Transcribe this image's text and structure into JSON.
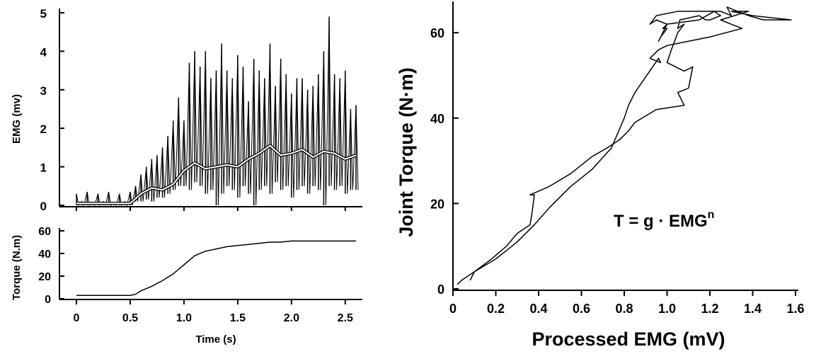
{
  "chart_data": [
    {
      "id": "emg",
      "type": "line",
      "xlabel": "",
      "ylabel": "EMG (mv)",
      "xlim": [
        0,
        2.6
      ],
      "ylim": [
        0,
        5
      ],
      "yticks": [
        "0",
        "1",
        "2",
        "3",
        "4",
        "5"
      ],
      "grid": false,
      "series": [
        {
          "role": "raw",
          "color": "#000000",
          "x": [
            0.0,
            0.05,
            0.1,
            0.15,
            0.2,
            0.25,
            0.3,
            0.35,
            0.4,
            0.45,
            0.5,
            0.55,
            0.6,
            0.65,
            0.7,
            0.75,
            0.8,
            0.85,
            0.9,
            0.95,
            1.0,
            1.05,
            1.1,
            1.15,
            1.2,
            1.25,
            1.3,
            1.35,
            1.4,
            1.45,
            1.5,
            1.55,
            1.6,
            1.65,
            1.7,
            1.75,
            1.8,
            1.85,
            1.9,
            1.95,
            2.0,
            2.05,
            2.1,
            2.15,
            2.2,
            2.25,
            2.3,
            2.35,
            2.4,
            2.45,
            2.5,
            2.55,
            2.6
          ],
          "y": [
            0.3,
            0.1,
            0.35,
            0.05,
            0.3,
            0.1,
            0.35,
            0.05,
            0.3,
            0.1,
            0.35,
            0.5,
            0.8,
            1.0,
            1.2,
            1.3,
            1.5,
            1.8,
            2.2,
            2.8,
            2.2,
            3.7,
            4.0,
            3.6,
            4.0,
            3.3,
            3.5,
            4.2,
            3.5,
            3.3,
            3.9,
            3.6,
            2.7,
            3.8,
            3.5,
            3.3,
            4.2,
            3.1,
            3.8,
            3.4,
            2.9,
            3.3,
            3.3,
            3.0,
            3.1,
            3.4,
            4.0,
            4.9,
            3.4,
            3.3,
            3.5,
            2.5,
            2.6
          ],
          "y_low": [
            0.0,
            0.0,
            0.0,
            0.0,
            0.0,
            0.0,
            0.0,
            0.0,
            0.0,
            0.0,
            0.0,
            0.1,
            0.1,
            0.15,
            0.1,
            0.2,
            0.2,
            0.3,
            0.4,
            0.5,
            0.5,
            0.4,
            0.6,
            0.5,
            0.3,
            0.4,
            0.0,
            0.3,
            0.5,
            0.4,
            0.2,
            0.5,
            0.3,
            0.0,
            0.4,
            0.5,
            0.3,
            0.6,
            0.4,
            0.5,
            0.2,
            0.4,
            0.5,
            0.3,
            0.5,
            0.4,
            0.0,
            0.5,
            0.4,
            0.5,
            0.3,
            0.4,
            0.4
          ]
        },
        {
          "role": "processed",
          "color": "#ffffff",
          "x": [
            0.0,
            0.5,
            0.6,
            0.7,
            0.8,
            0.9,
            1.0,
            1.1,
            1.2,
            1.3,
            1.4,
            1.5,
            1.6,
            1.7,
            1.8,
            1.9,
            2.0,
            2.1,
            2.2,
            2.3,
            2.4,
            2.5,
            2.6
          ],
          "y": [
            0.05,
            0.05,
            0.3,
            0.45,
            0.4,
            0.55,
            0.9,
            1.1,
            0.95,
            1.0,
            1.05,
            1.0,
            1.2,
            1.35,
            1.55,
            1.3,
            1.35,
            1.45,
            1.25,
            1.4,
            1.35,
            1.2,
            1.3
          ]
        }
      ]
    },
    {
      "id": "torque",
      "type": "line",
      "xlabel": "Time (s)",
      "ylabel": "Torque (N.m)",
      "xlim": [
        0,
        2.6
      ],
      "ylim": [
        0,
        60
      ],
      "xticks": [
        "0",
        "0.5",
        "1.0",
        "1.5",
        "2.0",
        "2.5"
      ],
      "yticks": [
        "0",
        "20",
        "40",
        "60"
      ],
      "grid": false,
      "series": [
        {
          "color": "#000000",
          "x": [
            0.0,
            0.5,
            0.55,
            0.6,
            0.7,
            0.8,
            0.9,
            1.0,
            1.1,
            1.2,
            1.3,
            1.4,
            1.5,
            1.6,
            1.7,
            1.8,
            1.9,
            2.0,
            2.1,
            2.2,
            2.3,
            2.4,
            2.5,
            2.6
          ],
          "y": [
            3,
            3,
            4,
            7,
            11,
            16,
            22,
            30,
            38,
            42,
            44,
            46,
            47,
            48,
            49,
            50,
            50,
            51,
            51,
            51,
            51,
            51,
            51,
            51
          ]
        }
      ]
    },
    {
      "id": "relation",
      "type": "line",
      "xlabel": "Processed EMG (mV)",
      "ylabel": "Joint Torque (N·m)",
      "xlim": [
        0,
        1.6
      ],
      "ylim": [
        0,
        67
      ],
      "xticks": [
        "0",
        "0.2",
        "0.4",
        "0.6",
        "0.8",
        "1.0",
        "1.2",
        "1.4",
        "1.6"
      ],
      "yticks": [
        "0",
        "20",
        "40",
        "60"
      ],
      "annotation": {
        "text": "T = g · EMG",
        "superscript": "n"
      },
      "grid": false,
      "series": [
        {
          "color": "#000000",
          "x": [
            0.02,
            0.04,
            0.1,
            0.18,
            0.25,
            0.3,
            0.36,
            0.37,
            0.38,
            0.36,
            0.45,
            0.55,
            0.65,
            0.72,
            0.78,
            0.82,
            0.85,
            0.95,
            1.08,
            1.05,
            1.1,
            1.12,
            1.08,
            1.0,
            1.02,
            1.05,
            1.08,
            1.05,
            1.06,
            1.15,
            1.18,
            1.2,
            1.25,
            1.22,
            1.15,
            1.0,
            0.98,
            1.0,
            0.97,
            0.96,
            0.98,
            1.0,
            0.95,
            0.92,
            0.95,
            1.05,
            1.15,
            1.25,
            1.3,
            1.28,
            1.38,
            1.45,
            1.58,
            1.4,
            1.3,
            1.38,
            1.25,
            1.3,
            1.35,
            1.2,
            1.1,
            1.0,
            0.96,
            0.92,
            0.97,
            0.96,
            0.85,
            0.82,
            0.8,
            0.74,
            0.65,
            0.55,
            0.45,
            0.38,
            0.3,
            0.2,
            0.1,
            0.08
          ],
          "y": [
            1,
            2,
            4,
            7,
            10,
            13,
            15,
            18,
            22,
            22,
            24,
            27,
            31,
            33,
            35,
            37,
            39,
            42,
            43,
            46,
            47,
            52,
            51,
            53,
            56,
            60,
            62,
            61,
            63,
            64,
            63,
            63,
            64,
            65,
            63,
            62,
            61,
            61,
            59,
            58,
            60,
            62,
            63,
            62,
            64,
            65,
            65,
            65,
            64,
            66,
            64,
            63,
            63,
            64,
            65,
            65,
            63,
            62,
            61,
            59,
            58,
            57,
            56,
            54,
            53,
            54,
            46,
            43,
            40,
            33,
            28,
            24,
            19,
            15,
            11,
            7,
            4,
            2
          ]
        }
      ]
    }
  ]
}
